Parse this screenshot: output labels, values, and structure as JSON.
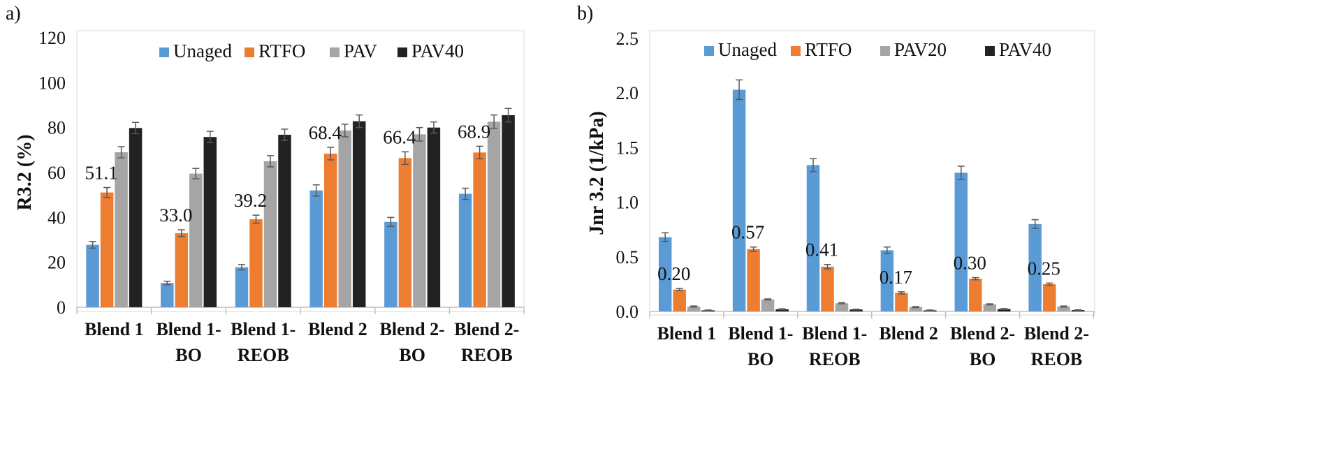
{
  "chart_data": [
    {
      "type": "bar",
      "panel_label": "a)",
      "ylabel": "R3.2 (%)",
      "ylim": [
        0,
        120
      ],
      "yticks": [
        0,
        20,
        40,
        60,
        80,
        100,
        120
      ],
      "yticks_text": [
        "0",
        "20",
        "40",
        "60",
        "80",
        "100",
        "120"
      ],
      "categories": [
        [
          "Blend 1"
        ],
        [
          "Blend 1-",
          "BO"
        ],
        [
          "Blend 1-",
          "REOB"
        ],
        [
          "Blend 2"
        ],
        [
          "Blend 2-",
          "BO"
        ],
        [
          "Blend 2-",
          "REOB"
        ]
      ],
      "legend": [
        "Unaged",
        "RTFO",
        "PAV",
        "PAV40"
      ],
      "legend_position": "top-center",
      "grid": false,
      "series": [
        {
          "name": "Unaged",
          "color": "#5B9BD5",
          "values": [
            27.8,
            10.8,
            17.8,
            52.0,
            38.0,
            50.5
          ],
          "errors": [
            1.5,
            0.8,
            1.2,
            2.5,
            2.0,
            2.5
          ]
        },
        {
          "name": "RTFO",
          "color": "#ED7D31",
          "values": [
            51.1,
            33.0,
            39.2,
            68.4,
            66.4,
            68.9
          ],
          "errors": [
            2.2,
            1.5,
            1.8,
            2.8,
            2.8,
            2.8
          ]
        },
        {
          "name": "PAV",
          "color": "#A5A5A5",
          "values": [
            69.0,
            59.5,
            65.0,
            78.7,
            77.0,
            82.6
          ],
          "errors": [
            2.5,
            2.3,
            2.5,
            2.8,
            3.0,
            3.0
          ]
        },
        {
          "name": "PAV40",
          "color": "#222222",
          "values": [
            79.8,
            75.8,
            76.8,
            82.8,
            80.0,
            85.5
          ],
          "errors": [
            2.5,
            2.5,
            2.5,
            2.8,
            2.5,
            3.0
          ]
        }
      ],
      "data_labels": [
        {
          "series_index": 1,
          "category_index": 0,
          "text": "51.1"
        },
        {
          "series_index": 1,
          "category_index": 1,
          "text": "33.0"
        },
        {
          "series_index": 1,
          "category_index": 2,
          "text": "39.2"
        },
        {
          "series_index": 1,
          "category_index": 3,
          "text": "68.4"
        },
        {
          "series_index": 1,
          "category_index": 4,
          "text": "66.4"
        },
        {
          "series_index": 1,
          "category_index": 5,
          "text": "68.9"
        }
      ]
    },
    {
      "type": "bar",
      "panel_label": "b)",
      "ylabel": "Jnr 3.2 (1/kPa)",
      "ylim": [
        0,
        2.5
      ],
      "yticks": [
        0,
        0.5,
        1.0,
        1.5,
        2.0,
        2.5
      ],
      "yticks_text": [
        "0.0",
        "0.5",
        "1.0",
        "1.5",
        "2.0",
        "2.5"
      ],
      "categories": [
        [
          "Blend 1"
        ],
        [
          "Blend 1-",
          "BO"
        ],
        [
          "Blend 1-",
          "REOB"
        ],
        [
          "Blend 2"
        ],
        [
          "Blend 2-",
          "BO"
        ],
        [
          "Blend 2-",
          "REOB"
        ]
      ],
      "legend": [
        "Unaged",
        "RTFO",
        "PAV20",
        "PAV40"
      ],
      "legend_position": "top-center",
      "grid": false,
      "series": [
        {
          "name": "Unaged",
          "color": "#5B9BD5",
          "values": [
            0.68,
            2.03,
            1.34,
            0.56,
            1.27,
            0.8
          ],
          "errors": [
            0.04,
            0.09,
            0.06,
            0.03,
            0.06,
            0.04
          ]
        },
        {
          "name": "RTFO",
          "color": "#ED7D31",
          "values": [
            0.2,
            0.57,
            0.41,
            0.17,
            0.3,
            0.25
          ],
          "errors": [
            0.01,
            0.02,
            0.02,
            0.01,
            0.01,
            0.01
          ]
        },
        {
          "name": "PAV20",
          "color": "#A5A5A5",
          "values": [
            0.045,
            0.11,
            0.075,
            0.04,
            0.065,
            0.045
          ],
          "errors": [
            0.005,
            0.005,
            0.005,
            0.005,
            0.005,
            0.005
          ]
        },
        {
          "name": "PAV40",
          "color": "#222222",
          "values": [
            0.01,
            0.02,
            0.018,
            0.01,
            0.022,
            0.012
          ],
          "errors": [
            0.003,
            0.004,
            0.003,
            0.003,
            0.004,
            0.003
          ]
        }
      ],
      "data_labels": [
        {
          "series_index": 1,
          "category_index": 0,
          "text": "0.20"
        },
        {
          "series_index": 1,
          "category_index": 1,
          "text": "0.57"
        },
        {
          "series_index": 1,
          "category_index": 2,
          "text": "0.41"
        },
        {
          "series_index": 1,
          "category_index": 3,
          "text": "0.17"
        },
        {
          "series_index": 1,
          "category_index": 4,
          "text": "0.30"
        },
        {
          "series_index": 1,
          "category_index": 5,
          "text": "0.25"
        }
      ]
    }
  ]
}
